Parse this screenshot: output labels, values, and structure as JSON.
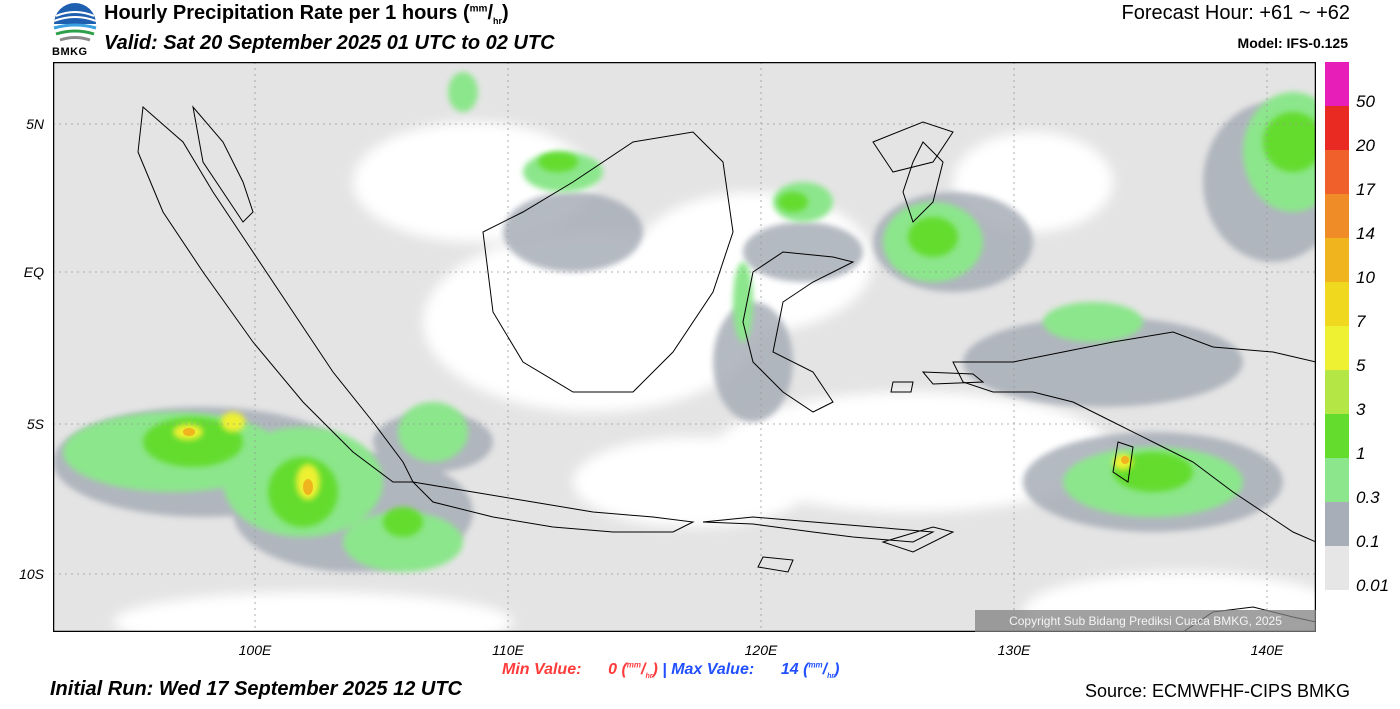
{
  "header": {
    "title": "Hourly Precipitation Rate per 1 hours",
    "title_unit_num": "mm",
    "title_unit_den": "hr",
    "valid": "Valid: Sat 20 September 2025 01 UTC to 02 UTC",
    "forecast_hour": "Forecast Hour: +61 ~ +62",
    "model": "Model: IFS-0.125",
    "logo_text": "BMKG"
  },
  "map": {
    "lat_labels": [
      "5N",
      "EQ",
      "5S",
      "10S"
    ],
    "lon_labels": [
      "100E",
      "110E",
      "120E",
      "130E",
      "140E"
    ],
    "copyright": "Copyright Sub Bidang Prediksi Cuaca BMKG, 2025"
  },
  "stats": {
    "min_label": "Min Value:",
    "min_value": "0",
    "max_label": "Max Value:",
    "max_value": "14",
    "unit_num": "mm",
    "unit_den": "hr",
    "separator": "|"
  },
  "footer": {
    "initial_run": "Initial Run: Wed 17 September 2025 12 UTC",
    "source": "Source: ECMWFHF-CIPS BMKG"
  },
  "colorbar": {
    "labels": [
      "50",
      "20",
      "17",
      "14",
      "10",
      "7",
      "5",
      "3",
      "1",
      "0.3",
      "0.1",
      "0.01"
    ],
    "colors": [
      "#e81eb8",
      "#e82a22",
      "#f0602a",
      "#f08c28",
      "#f0b41e",
      "#f0d81e",
      "#eef032",
      "#b4e646",
      "#64dc2e",
      "#8ce68c",
      "#a8aeb8",
      "#e6e6e6"
    ],
    "colors_order": "top-to-bottom"
  }
}
